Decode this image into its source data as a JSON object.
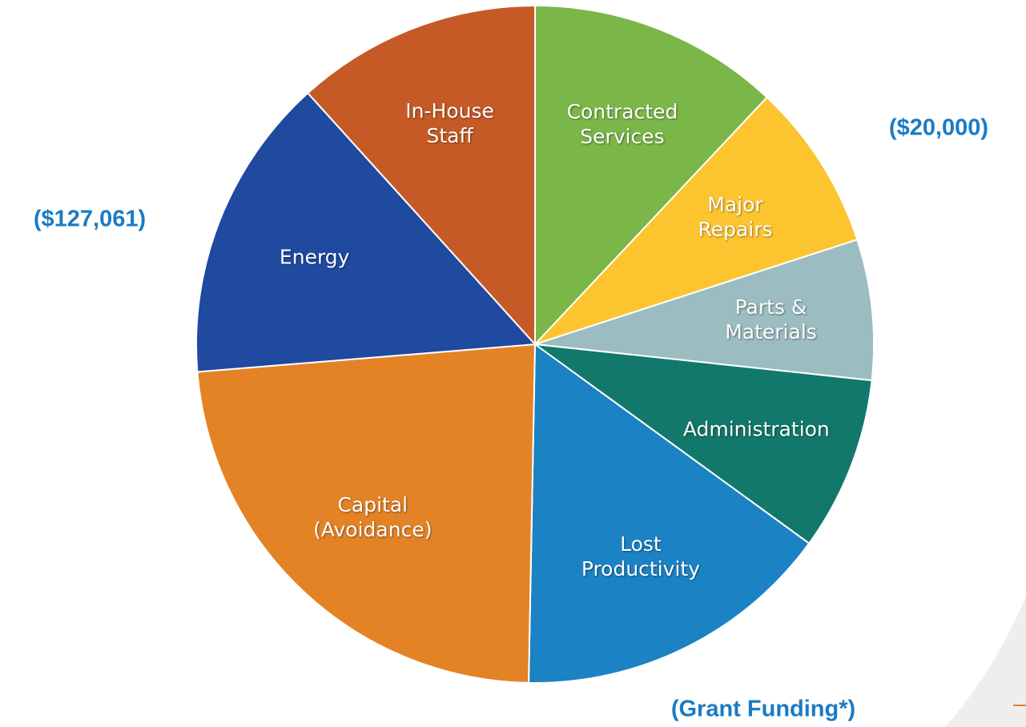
{
  "chart_data": {
    "type": "pie",
    "categories": [
      "Contracted\nServices",
      "Major\nRepairs",
      "Parts &\nMaterials",
      "Administration",
      "Lost\nProductivity",
      "Capital\n(Avoidance)",
      "Energy",
      "In-House\nStaff"
    ],
    "values": [
      12,
      8,
      6.7,
      8.3,
      15.3,
      23.4,
      14.6,
      11.7
    ],
    "colors": [
      "#7ab648",
      "#fcc52f",
      "#9bbcc0",
      "#12786b",
      "#1b82c4",
      "#e38326",
      "#2049a0",
      "#c65a26"
    ],
    "annotations": [
      "($20,000)",
      "($127,061)",
      "(Grant Funding*)"
    ]
  }
}
